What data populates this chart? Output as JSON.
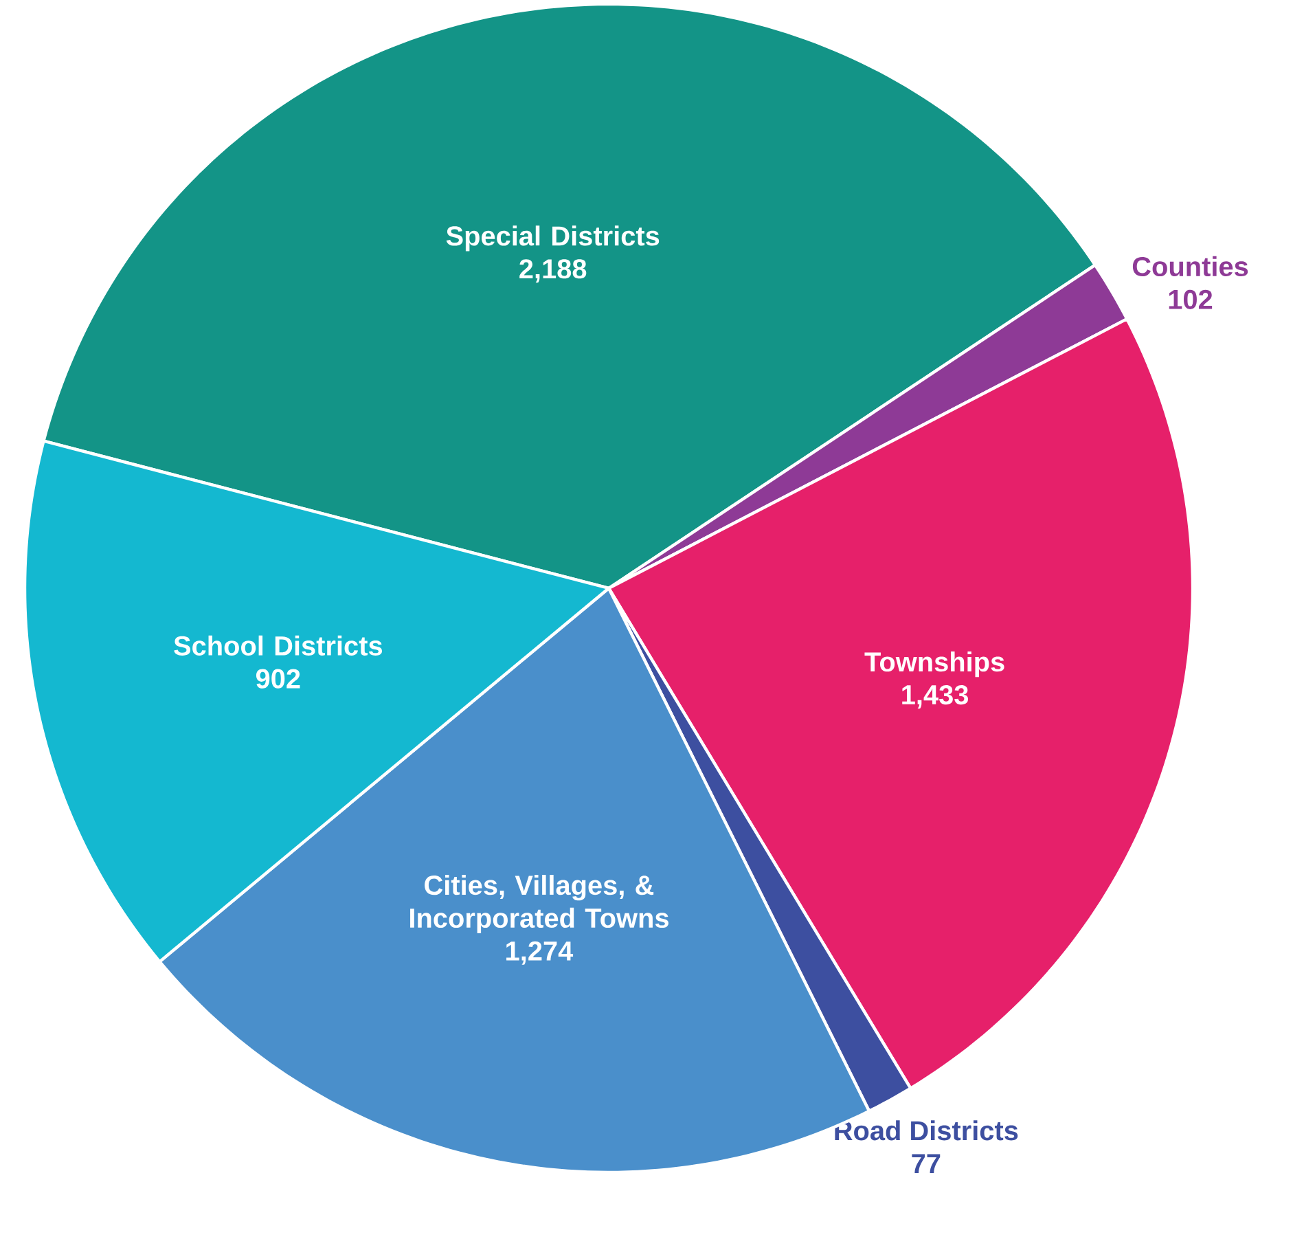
{
  "chart_data": {
    "type": "pie",
    "categories": [
      "Special Districts",
      "Counties",
      "Townships",
      "Road Districts",
      "Cities, Villages, & Incorporated Towns",
      "School Districts"
    ],
    "values": [
      2188,
      102,
      1433,
      77,
      1274,
      902
    ],
    "value_labels": [
      "2,188",
      "102",
      "1,433",
      "77",
      "1,274",
      "902"
    ],
    "colors": [
      "#139487",
      "#8e3a96",
      "#e6206a",
      "#3d4fa0",
      "#4a8fcb",
      "#14b8d0"
    ]
  }
}
